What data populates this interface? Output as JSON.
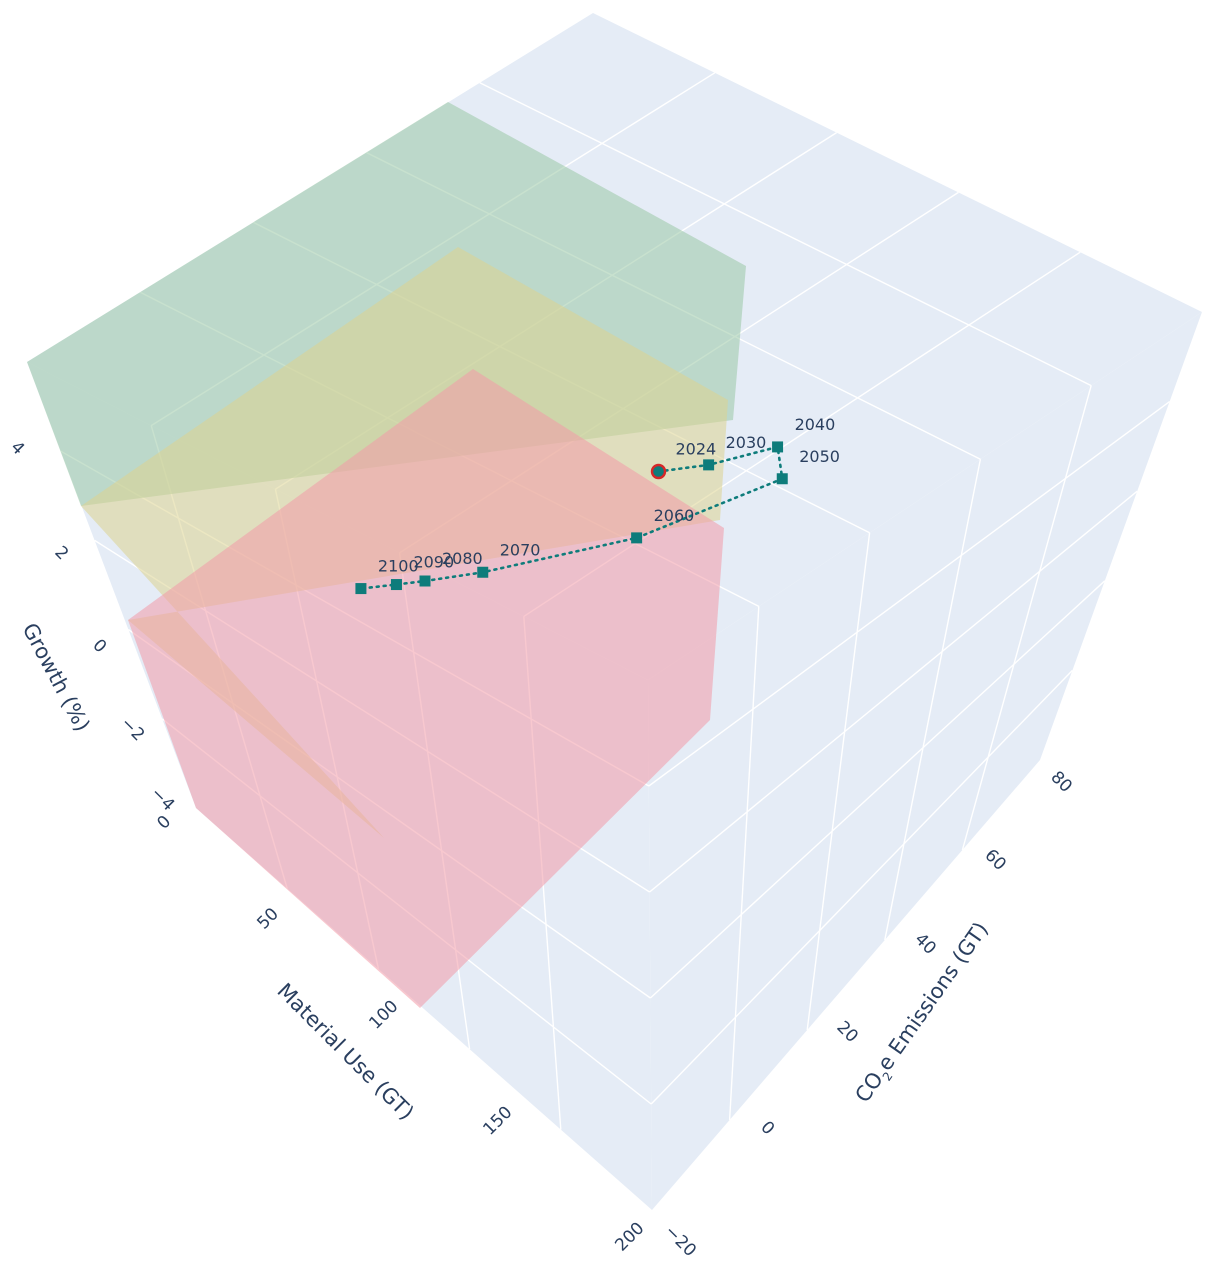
{
  "colors": {
    "pane": "#e5ecf6",
    "grid": "#ffffff",
    "text": "#2a3f5f",
    "series": "#0e7c7b",
    "start_marker_border": "#d62728",
    "zone_green": "#9bc9a6",
    "zone_yellow": "#dcd48f",
    "zone_red": "#f29aa8"
  },
  "chart_data": {
    "type": "scatter3d",
    "axes": {
      "x": {
        "title": "Material Use (GT)",
        "range": [
          0,
          200
        ],
        "ticks": [
          "0",
          "50",
          "100",
          "150",
          "200"
        ]
      },
      "y": {
        "title_main": "CO",
        "title_sub": "2",
        "title_rest": "e Emissions (GT)",
        "range": [
          -20,
          80
        ],
        "ticks": [
          "−20",
          "0",
          "20",
          "40",
          "60",
          "80"
        ]
      },
      "z": {
        "title": "Growth (%)",
        "range": [
          -4,
          4
        ],
        "ticks": [
          "−4",
          "−2",
          "0",
          "2",
          "4"
        ]
      }
    },
    "series": [
      {
        "marker": "square",
        "line": "dotted",
        "points": [
          {
            "label": "2024",
            "x": 100,
            "y": 40,
            "z": 2,
            "start": true
          },
          {
            "label": "2030",
            "x": 110,
            "y": 45,
            "z": 2.1
          },
          {
            "label": "2040",
            "x": 125,
            "y": 52,
            "z": 2.5
          },
          {
            "label": "2050",
            "x": 130,
            "y": 50,
            "z": 2.2
          },
          {
            "label": "2060",
            "x": 95,
            "y": 35,
            "z": 0.7
          },
          {
            "label": "2070",
            "x": 60,
            "y": 20,
            "z": -0.2
          },
          {
            "label": "2080",
            "x": 45,
            "y": 15,
            "z": -0.6
          },
          {
            "label": "2090",
            "x": 40,
            "y": 12,
            "z": -0.6
          },
          {
            "label": "2100",
            "x": 35,
            "y": 8,
            "z": -0.5
          }
        ]
      }
    ],
    "zones": [
      {
        "color": "zone_red",
        "x": [
          0,
          100
        ],
        "y": [
          -20,
          20
        ],
        "z": [
          -4,
          4
        ]
      },
      {
        "color": "zone_yellow",
        "x": [
          0,
          100
        ],
        "y": [
          -20,
          40
        ],
        "z": [
          -4,
          4
        ]
      },
      {
        "color": "zone_green",
        "x": [
          0,
          100
        ],
        "y": [
          -20,
          60
        ],
        "z": [
          -4,
          4
        ]
      }
    ]
  }
}
